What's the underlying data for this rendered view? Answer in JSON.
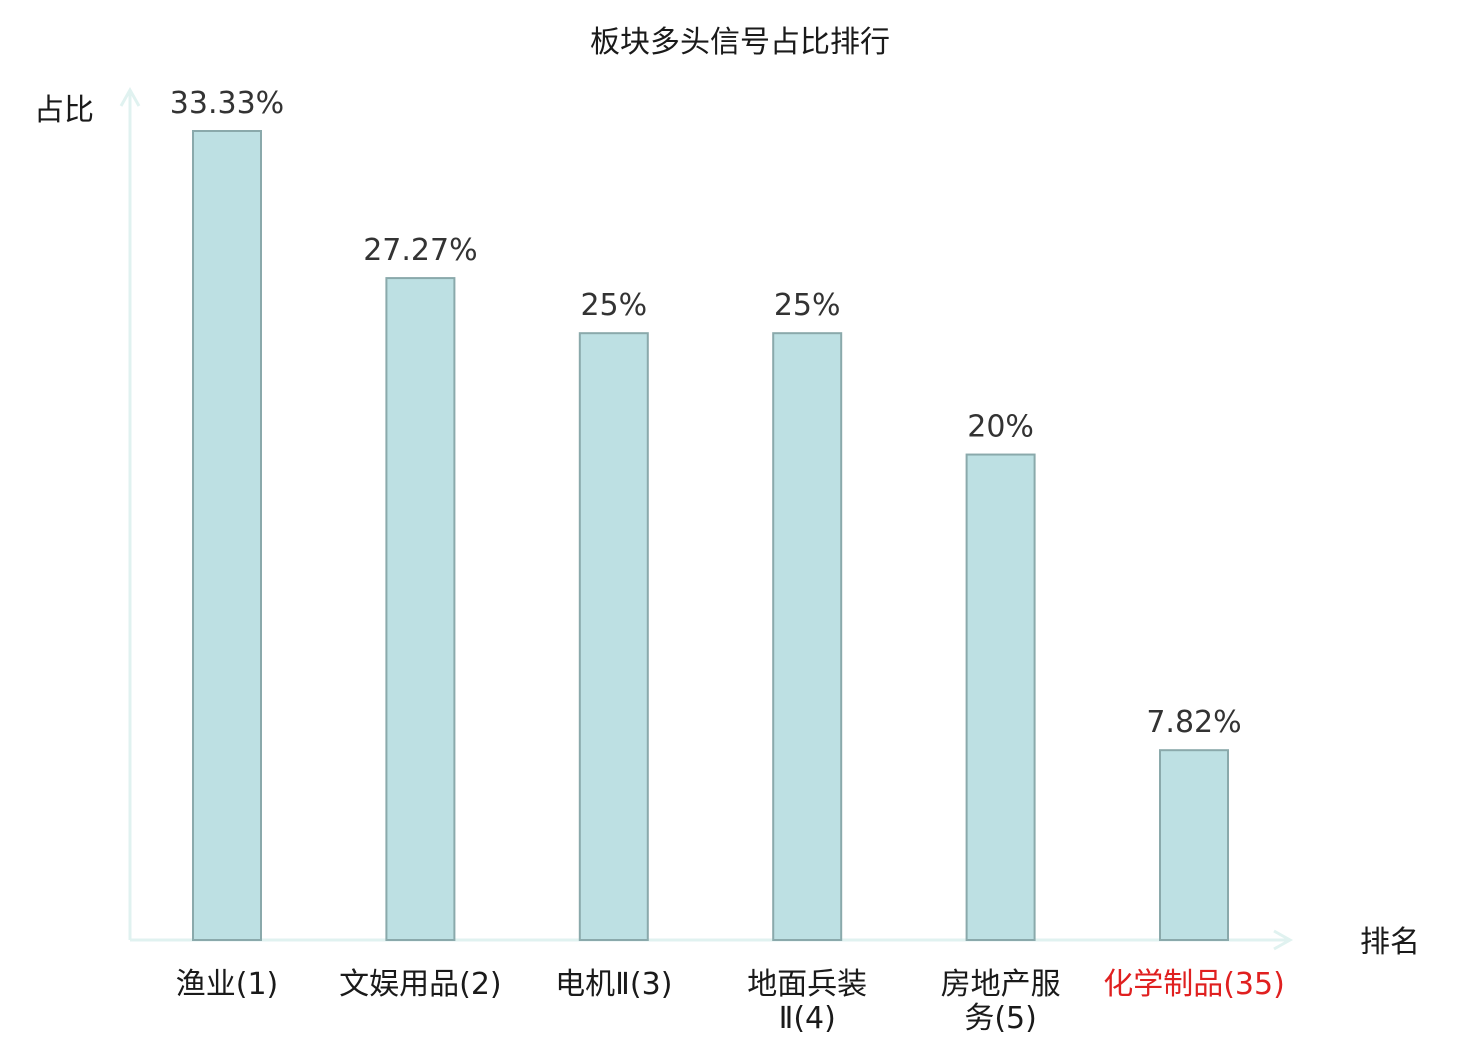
{
  "chart_data": {
    "type": "bar",
    "title": "板块多头信号占比排行",
    "xlabel": "排名",
    "ylabel": "占比",
    "ylim": [
      0,
      35
    ],
    "grid": false,
    "categories": [
      {
        "name_lines": [
          "渔业"
        ],
        "rank": "(1)",
        "highlight": false
      },
      {
        "name_lines": [
          "文娱用品"
        ],
        "rank": "(2)",
        "highlight": false
      },
      {
        "name_lines": [
          "电机Ⅱ"
        ],
        "rank": "(3)",
        "highlight": false
      },
      {
        "name_lines": [
          "地面兵装",
          "Ⅱ"
        ],
        "rank": "(4)",
        "highlight": false
      },
      {
        "name_lines": [
          "房地产服",
          "务"
        ],
        "rank": "(5)",
        "highlight": false
      },
      {
        "name_lines": [
          "化学制品"
        ],
        "rank": "(35)",
        "highlight": true
      }
    ],
    "values": [
      33.33,
      27.27,
      25,
      25,
      20,
      7.82
    ],
    "value_labels": [
      "33.33%",
      "27.27%",
      "25%",
      "25%",
      "20%",
      "7.82%"
    ],
    "colors": {
      "bar_fill": "#bde0e3",
      "bar_stroke": "#8aa9ab",
      "axis": "#e0f2f0",
      "highlight_text": "#e02020",
      "text": "#1a1a1a",
      "value_text": "#333333"
    }
  }
}
